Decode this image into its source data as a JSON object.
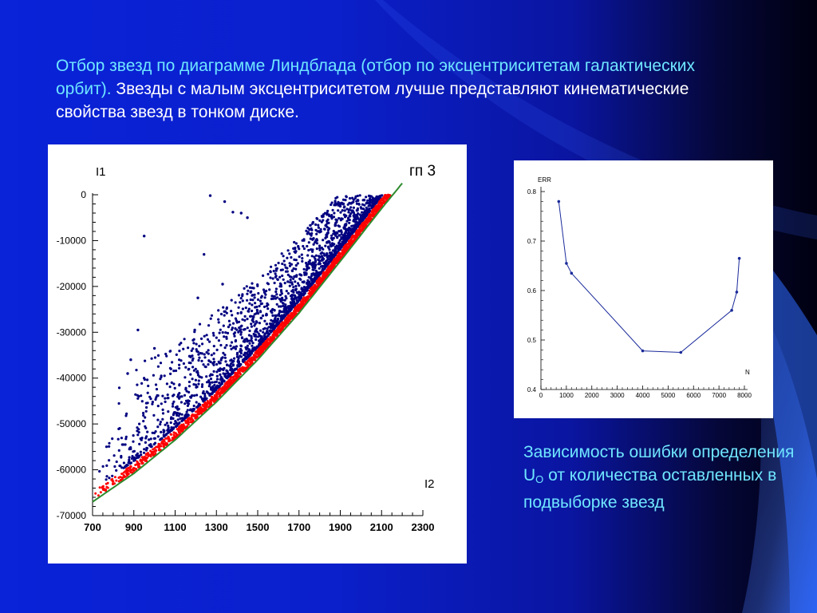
{
  "slide": {
    "title_accent_1": "Отбор звезд по диаграмме Линдблада (отбор по эксцентриситетам галактических орбит).",
    "title_main": "Звезды с малым эксцентриситетом лучше представляют кинематические свойства звезд в тонком диске.",
    "caption_part1": "Зависимость ошибки определения U",
    "caption_sub": "O",
    "caption_part2": " от количества оставленных в подвыборке звезд"
  },
  "colors": {
    "background": "#0a22d8",
    "accent_text": "#6fe6ff",
    "scatter_blue": "#000080",
    "scatter_red": "#ff0000",
    "curve_green": "#2e8b2e",
    "err_line": "#1a2a9a"
  },
  "chart_data": [
    {
      "type": "scatter",
      "title": "гп 3",
      "xlabel": "I2",
      "ylabel": "I1",
      "xlim": [
        700,
        2300
      ],
      "ylim": [
        -70000,
        0
      ],
      "x_ticks": [
        "700",
        "900",
        "1100",
        "1300",
        "1500",
        "1700",
        "1900",
        "2100",
        "2300"
      ],
      "y_ticks": [
        "0",
        "-10000",
        "-20000",
        "-30000",
        "-40000",
        "-50000",
        "-60000",
        "-70000"
      ],
      "grid": false,
      "boundary_curve": {
        "color": "green",
        "x": [
          700,
          900,
          1100,
          1300,
          1500,
          1700,
          1900,
          2100,
          2200
        ],
        "y": [
          -67000,
          -60800,
          -53500,
          -45200,
          -36000,
          -25800,
          -14500,
          -3000,
          2500
        ]
      },
      "series": [
        {
          "color": "red",
          "description_points": "dense band just above boundary curve"
        },
        {
          "color": "blue",
          "description_points": "scatter spreading above the red band, sparse toward upper left"
        }
      ],
      "outliers": [
        {
          "x": 1270,
          "y": -200
        },
        {
          "x": 1340,
          "y": -1500
        },
        {
          "x": 1420,
          "y": -4000
        },
        {
          "x": 1450,
          "y": -5000
        },
        {
          "x": 1380,
          "y": -3800
        },
        {
          "x": 1900,
          "y": -2500
        },
        {
          "x": 950,
          "y": -9000
        },
        {
          "x": 1240,
          "y": -13000
        },
        {
          "x": 1330,
          "y": -19500
        },
        {
          "x": 1210,
          "y": -22500
        },
        {
          "x": 1195,
          "y": -29500
        },
        {
          "x": 920,
          "y": -29500
        },
        {
          "x": 1000,
          "y": -33500
        },
        {
          "x": 885,
          "y": -36000
        },
        {
          "x": 870,
          "y": -39000
        }
      ]
    },
    {
      "type": "line",
      "xlabel": "N",
      "ylabel": "ERR",
      "xlim": [
        0,
        8000
      ],
      "ylim": [
        0.4,
        0.8
      ],
      "x_ticks": [
        "0",
        "1000",
        "2000",
        "3000",
        "4000",
        "5000",
        "6000",
        "7000",
        "8000"
      ],
      "y_ticks": [
        "0.8",
        "0.7",
        "0.6",
        "0.5",
        "0.4"
      ],
      "x": [
        700,
        1000,
        1200,
        4000,
        5500,
        7500,
        7700,
        7800
      ],
      "y": [
        0.78,
        0.655,
        0.635,
        0.478,
        0.475,
        0.56,
        0.597,
        0.665
      ]
    }
  ]
}
